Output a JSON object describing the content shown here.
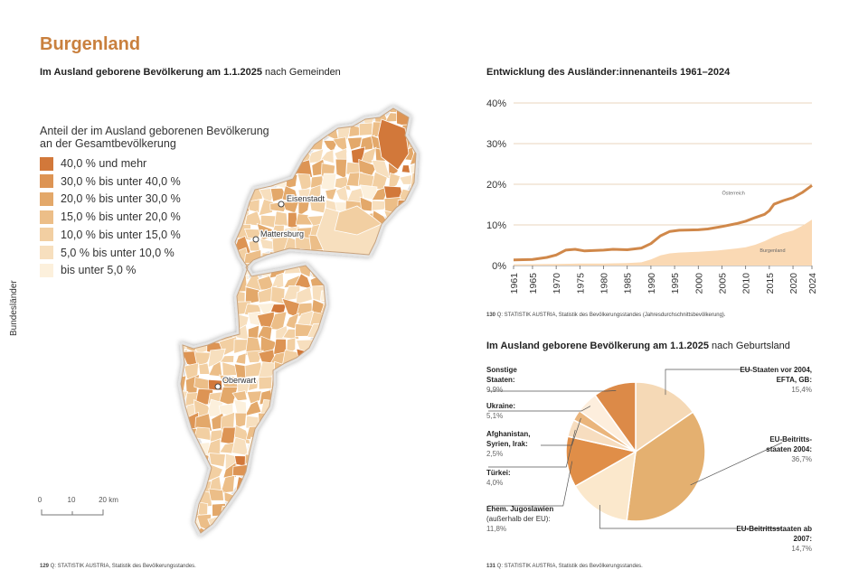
{
  "page": {
    "title": "Burgenland",
    "side_label": "Bundesländer"
  },
  "map": {
    "subtitle_bold": "Im Ausland geborene Bevölkerung am 1.1.2025",
    "subtitle_rest": " nach Gemeinden",
    "legend_title": "Anteil der im Ausland geborenen Bevölkerung an der Gesamtbevölkerung",
    "legend": [
      {
        "label": "40,0 % und mehr",
        "color": "#d2783a"
      },
      {
        "label": "30,0 % bis unter 40,0 %",
        "color": "#dd9454"
      },
      {
        "label": "20,0 % bis unter 30,0 %",
        "color": "#e3a86a"
      },
      {
        "label": "15,0 % bis unter 20,0 %",
        "color": "#ecbe88"
      },
      {
        "label": "10,0 % bis unter 15,0 %",
        "color": "#f2cfa2"
      },
      {
        "label": "5,0 % bis unter 10,0 %",
        "color": "#f7dfbe"
      },
      {
        "label": "bis unter 5,0 %",
        "color": "#fcf0dc"
      }
    ],
    "cities": [
      "Eisenstadt",
      "Mattersburg",
      "Oberwart"
    ],
    "scale": {
      "labels": [
        "0",
        "10",
        "20 km"
      ]
    },
    "source_num": "129",
    "source_text": " Q: STATISTIK AUSTRIA, Statistik des Bevölkerungsstandes."
  },
  "chart": {
    "subtitle": "Entwicklung des Ausländer:innenanteils 1961–2024",
    "source_num": "130",
    "source_text": " Q: STATISTIK AUSTRIA, Statistik des Bevölkerungsstandes (Jahresdurchschnittsbevölkerung)."
  },
  "chart_data": [
    {
      "type": "area",
      "title": "Entwicklung des Ausländer:innenanteils 1961–2024",
      "ylim": [
        0,
        40
      ],
      "y_ticks": [
        "0%",
        "10%",
        "20%",
        "30%",
        "40%"
      ],
      "x_ticks": [
        "1961",
        "1965",
        "1970",
        "1975",
        "1980",
        "1985",
        "1990",
        "1995",
        "2000",
        "2005",
        "2010",
        "2015",
        "2020",
        "2024"
      ],
      "series": [
        {
          "name": "Österreich",
          "type": "line",
          "color": "#d0884a",
          "x": [
            1961,
            1965,
            1968,
            1970,
            1972,
            1974,
            1976,
            1980,
            1982,
            1985,
            1988,
            1990,
            1992,
            1994,
            1996,
            2000,
            2002,
            2005,
            2008,
            2010,
            2012,
            2014,
            2015,
            2016,
            2018,
            2020,
            2022,
            2024
          ],
          "values": [
            1.4,
            1.5,
            2.0,
            2.6,
            3.8,
            4.0,
            3.6,
            3.8,
            4.0,
            3.9,
            4.3,
            5.4,
            7.3,
            8.4,
            8.7,
            8.8,
            9.0,
            9.6,
            10.3,
            10.9,
            11.8,
            12.6,
            13.5,
            15.1,
            16.0,
            16.7,
            18.0,
            19.7
          ]
        },
        {
          "name": "Burgenland",
          "type": "area",
          "color": "#fad9b4",
          "x": [
            1961,
            1970,
            1975,
            1980,
            1985,
            1988,
            1990,
            1992,
            1994,
            1996,
            2000,
            2004,
            2008,
            2010,
            2012,
            2014,
            2016,
            2018,
            2020,
            2022,
            2024
          ],
          "values": [
            0.3,
            0.4,
            0.5,
            0.5,
            0.6,
            0.8,
            1.5,
            2.5,
            3.0,
            3.2,
            3.4,
            3.7,
            4.2,
            4.5,
            5.1,
            6.0,
            7.1,
            8.0,
            8.6,
            9.8,
            11.3
          ]
        }
      ]
    },
    {
      "type": "pie",
      "title": "Im Ausland geborene Bevölkerung am 1.1.2025 nach Geburtsland",
      "labels": [
        "EU-Staaten vor 2004, EFTA, GB:",
        "EU-Beitritts-staaten 2004:",
        "EU-Beitrittsstaaten ab 2007:",
        "Ehem. Jugoslawien (außerhalb der EU):",
        "Türkei:",
        "Afghanistan, Syrien, Irak:",
        "Ukraine:",
        "Sonstige Staaten:"
      ],
      "values": [
        15.4,
        36.7,
        14.7,
        11.8,
        4.0,
        2.5,
        5.1,
        9.9
      ],
      "colors": [
        "#f5d9b6",
        "#e4b070",
        "#fbe8cc",
        "#e08e48",
        "#f7ddbf",
        "#eab57c",
        "#fdeedd",
        "#dc8a48"
      ]
    }
  ],
  "pie": {
    "subtitle_bold": "Im Ausland geborene Bevölkerung am 1.1.2025",
    "subtitle_rest": " nach Geburtsland",
    "labels": {
      "eu_old": {
        "name": "EU-Staaten vor 2004, EFTA, GB:",
        "value": "15,4%"
      },
      "eu_2004": {
        "name": "EU-Beitritts-staaten 2004:",
        "value": "36,7%"
      },
      "eu_2007": {
        "name": "EU-Beitrittsstaaten ab 2007:",
        "value": "14,7%"
      },
      "yugo": {
        "name": "Ehem. Jugoslawien",
        "name2": "(außerhalb der EU):",
        "value": "11,8%"
      },
      "turkey": {
        "name": "Türkei:",
        "value": "4,0%"
      },
      "afg": {
        "name": "Afghanistan, Syrien, Irak:",
        "value": "2,5%"
      },
      "ukraine": {
        "name": "Ukraine:",
        "value": "5,1%"
      },
      "other": {
        "name": "Sonstige Staaten:",
        "value": "9,9%"
      }
    },
    "source_num": "131",
    "source_text": " Q: STATISTIK AUSTRIA, Statistik des Bevölkerungsstandes."
  }
}
